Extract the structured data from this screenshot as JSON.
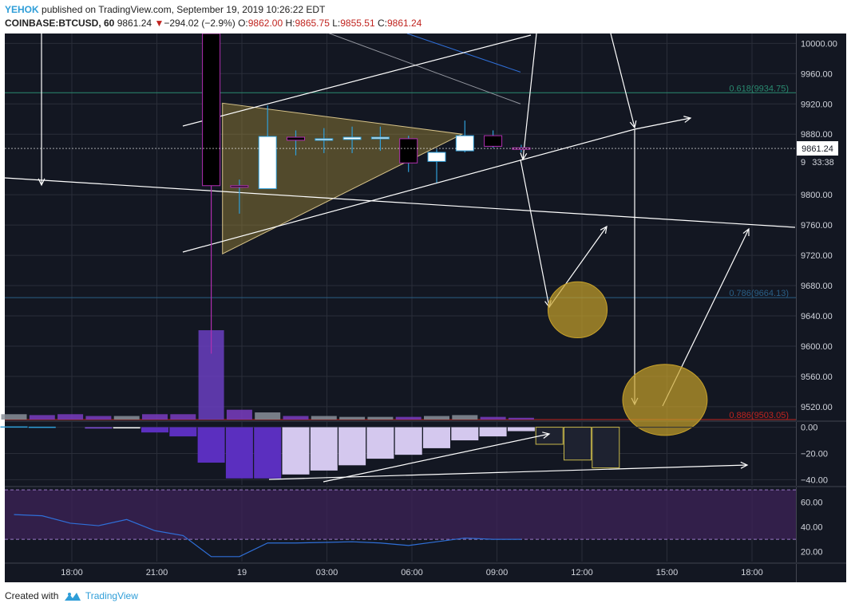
{
  "header": {
    "author": "YEHOK",
    "published": "published on TradingView.com, September 19, 2019 10:26:22 EDT",
    "symbol": "COINBASE:BTCUSD, 60",
    "last": "9861.24",
    "change_arrow": "▼",
    "change": "−294.02 (−2.9%)",
    "o_label": "O:",
    "o_value": "9862.00",
    "h_label": "H:",
    "h_value": "9865.75",
    "l_label": "L:",
    "l_value": "9855.51",
    "c_label": "C:",
    "c_value": "9861.24"
  },
  "footer": {
    "created": "Created with",
    "brand": "TradingView",
    "logo_icon": "tradingview-logo-icon"
  },
  "colors": {
    "background": "#131722",
    "grid": "#2a2e39",
    "bull_body": "#ffffff",
    "bear_body": "#000000",
    "wick": "#2f9ed8",
    "magenta": "#b02fb0",
    "triangle_fill": "#a08a3a",
    "circle_fill": "#c8a22a",
    "fib_618": "#2a8a70",
    "fib_786": "#2a5f86",
    "fib_886": "#c0241f",
    "hist_dark": "#5b2fbf",
    "hist_light": "#d4c8ee",
    "rsi_line": "#2f6fd8"
  },
  "chart_data": [
    {
      "type": "candlestick",
      "name": "price",
      "x_labels": [
        "18:00",
        "21:00",
        "19",
        "03:00",
        "06:00",
        "09:00",
        "12:00",
        "15:00",
        "18:00"
      ],
      "y_ticks": [
        9520,
        9560,
        9600,
        9640,
        9680,
        9720,
        9760,
        9800,
        9880,
        9920,
        9960,
        10000
      ],
      "y_tick_labels": [
        "9520.00",
        "9560.00",
        "9600.00",
        "9640.00",
        "9680.00",
        "9720.00",
        "9760.00",
        "9800.00",
        "9880.00",
        "9920.00",
        "9960.00",
        "10000.00"
      ],
      "ylim": [
        9503,
        10013
      ],
      "candles": [
        {
          "i": 7,
          "o": 10013,
          "h": 10013,
          "l": 9590,
          "c": 9812,
          "color": "bear"
        },
        {
          "i": 8,
          "o": 9812,
          "h": 9820,
          "l": 9775,
          "c": 9810,
          "color": "bear"
        },
        {
          "i": 9,
          "o": 9808,
          "h": 9918,
          "l": 9808,
          "c": 9877,
          "color": "bull"
        },
        {
          "i": 10,
          "o": 9876,
          "h": 9885,
          "l": 9852,
          "c": 9872,
          "color": "bear"
        },
        {
          "i": 11,
          "o": 9872,
          "h": 9888,
          "l": 9855,
          "c": 9874,
          "color": "bull"
        },
        {
          "i": 12,
          "o": 9873,
          "h": 9890,
          "l": 9855,
          "c": 9876,
          "color": "bull"
        },
        {
          "i": 13,
          "o": 9874,
          "h": 9890,
          "l": 9858,
          "c": 9876,
          "color": "bull"
        },
        {
          "i": 14,
          "o": 9874,
          "h": 9878,
          "l": 9830,
          "c": 9842,
          "color": "bear"
        },
        {
          "i": 15,
          "o": 9844,
          "h": 9860,
          "l": 9816,
          "c": 9856,
          "color": "bull"
        },
        {
          "i": 16,
          "o": 9858,
          "h": 9898,
          "l": 9856,
          "c": 9878,
          "color": "bull"
        },
        {
          "i": 17,
          "o": 9878,
          "h": 9885,
          "l": 9862,
          "c": 9864,
          "color": "bear"
        },
        {
          "i": 18,
          "o": 9862,
          "h": 9866,
          "l": 9856,
          "c": 9861,
          "color": "bear"
        }
      ],
      "volume": [
        {
          "i": 0,
          "v": 6,
          "color": "#8a8f99"
        },
        {
          "i": 1,
          "v": 5,
          "color": "#7a3cc0"
        },
        {
          "i": 2,
          "v": 6,
          "color": "#7a3cc0"
        },
        {
          "i": 3,
          "v": 4,
          "color": "#7a3cc0"
        },
        {
          "i": 4,
          "v": 4,
          "color": "#8a8f99"
        },
        {
          "i": 5,
          "v": 6,
          "color": "#7a3cc0"
        },
        {
          "i": 6,
          "v": 6,
          "color": "#7a3cc0"
        },
        {
          "i": 7,
          "v": 100,
          "color": "#6a3ec0"
        },
        {
          "i": 8,
          "v": 11,
          "color": "#7a3cc0"
        },
        {
          "i": 9,
          "v": 8,
          "color": "#8a8f99"
        },
        {
          "i": 10,
          "v": 4,
          "color": "#7a3cc0"
        },
        {
          "i": 11,
          "v": 4,
          "color": "#8a8f99"
        },
        {
          "i": 12,
          "v": 3,
          "color": "#8a8f99"
        },
        {
          "i": 13,
          "v": 3,
          "color": "#8a8f99"
        },
        {
          "i": 14,
          "v": 3,
          "color": "#7a3cc0"
        },
        {
          "i": 15,
          "v": 4,
          "color": "#8a8f99"
        },
        {
          "i": 16,
          "v": 5,
          "color": "#8a8f99"
        },
        {
          "i": 17,
          "v": 3,
          "color": "#7a3cc0"
        },
        {
          "i": 18,
          "v": 2,
          "color": "#7a3cc0"
        }
      ],
      "fib_levels": [
        {
          "ratio": "0.618",
          "value": 9934.75,
          "label": "0.618(9934.75)"
        },
        {
          "ratio": "0.786",
          "value": 9664.13,
          "label": "0.786(9664.13)"
        },
        {
          "ratio": "0.886",
          "value": 9503.05,
          "label": "0.886(9503.05)"
        }
      ],
      "last_price_label": "9861.24",
      "countdown_label": "33:38",
      "hidden_label_fragment": "9",
      "triangle": [
        [
          7.4,
          9921
        ],
        [
          15.9,
          9880
        ],
        [
          7.4,
          9722
        ]
      ],
      "circles": [
        {
          "cx": 20.0,
          "cy": 9648,
          "rx": 1.05,
          "ry": 37
        },
        {
          "cx": 23.1,
          "cy": 9529,
          "rx": 1.5,
          "ry": 47
        }
      ]
    },
    {
      "type": "bar",
      "name": "momentum",
      "y_ticks": [
        0,
        -20,
        -40
      ],
      "y_tick_labels": [
        "0.00",
        "−20.00",
        "−40.00"
      ],
      "ylim": [
        -44,
        4
      ],
      "bars": [
        {
          "i": 0,
          "v": 0.6,
          "color": "#2f9ed8"
        },
        {
          "i": 1,
          "v": 0.4,
          "color": "#2f9ed8"
        },
        {
          "i": 3,
          "v": -1,
          "color": "#7a4ad0"
        },
        {
          "i": 4,
          "v": -0.5,
          "color": "#ffffff"
        },
        {
          "i": 5,
          "v": -4,
          "color": "#5b2fbf"
        },
        {
          "i": 6,
          "v": -7,
          "color": "#5b2fbf"
        },
        {
          "i": 7,
          "v": -27,
          "color": "#5b2fbf"
        },
        {
          "i": 8,
          "v": -39,
          "color": "#5b2fbf"
        },
        {
          "i": 9,
          "v": -39,
          "color": "#5b2fbf"
        },
        {
          "i": 10,
          "v": -36,
          "color": "#d4c8ee"
        },
        {
          "i": 11,
          "v": -33,
          "color": "#d4c8ee"
        },
        {
          "i": 12,
          "v": -29,
          "color": "#d4c8ee"
        },
        {
          "i": 13,
          "v": -24,
          "color": "#d4c8ee"
        },
        {
          "i": 14,
          "v": -21,
          "color": "#d4c8ee"
        },
        {
          "i": 15,
          "v": -16,
          "color": "#d4c8ee"
        },
        {
          "i": 16,
          "v": -10,
          "color": "#d4c8ee"
        },
        {
          "i": 17,
          "v": -7,
          "color": "#d4c8ee"
        },
        {
          "i": 18,
          "v": -3,
          "color": "#d4c8ee"
        }
      ],
      "projected_boxes": [
        {
          "i": 19,
          "v": -13
        },
        {
          "i": 20,
          "v": -25
        },
        {
          "i": 21,
          "v": -31
        }
      ]
    },
    {
      "type": "line",
      "name": "rsi",
      "y_ticks": [
        60,
        40,
        20
      ],
      "y_tick_labels": [
        "60.00",
        "40.00",
        "20.00"
      ],
      "ylim": [
        12,
        72
      ],
      "band": [
        30,
        70
      ],
      "values": [
        {
          "i": 0,
          "v": 50
        },
        {
          "i": 1,
          "v": 49
        },
        {
          "i": 2,
          "v": 43
        },
        {
          "i": 3,
          "v": 41
        },
        {
          "i": 4,
          "v": 46
        },
        {
          "i": 5,
          "v": 37
        },
        {
          "i": 6,
          "v": 33
        },
        {
          "i": 7,
          "v": 16
        },
        {
          "i": 8,
          "v": 16
        },
        {
          "i": 9,
          "v": 27
        },
        {
          "i": 10,
          "v": 27
        },
        {
          "i": 11,
          "v": 27.5
        },
        {
          "i": 12,
          "v": 28
        },
        {
          "i": 13,
          "v": 27
        },
        {
          "i": 14,
          "v": 25
        },
        {
          "i": 15,
          "v": 28
        },
        {
          "i": 16,
          "v": 31
        },
        {
          "i": 17,
          "v": 30
        },
        {
          "i": 18,
          "v": 30
        }
      ]
    }
  ]
}
